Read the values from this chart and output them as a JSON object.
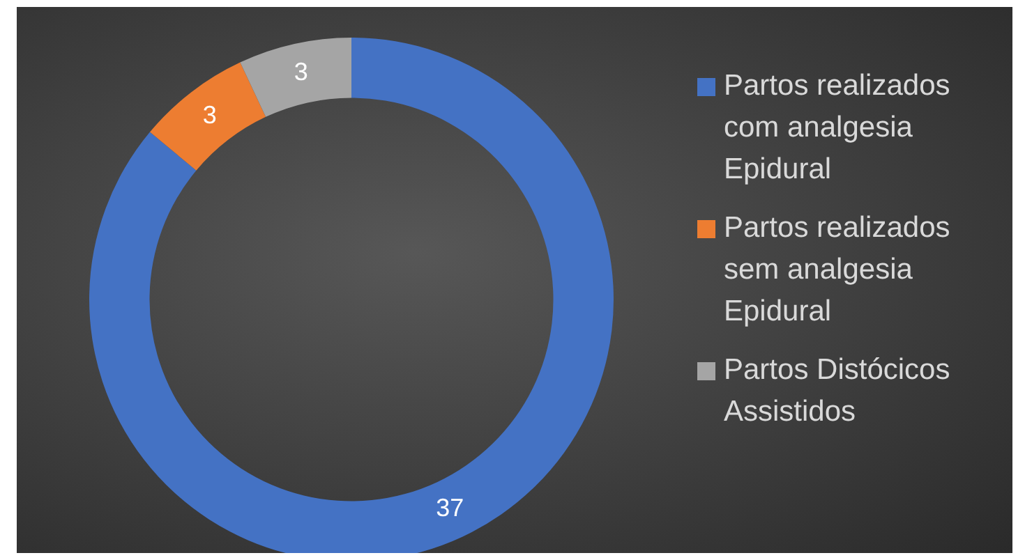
{
  "chart_data": {
    "type": "donut",
    "categories": [
      "Partos realizados com analgesia Epidural",
      "Partos realizados sem analgesia Epidural",
      "Partos Distócicos Assistidos"
    ],
    "values": [
      37,
      3,
      3
    ],
    "colors": [
      "#4472c4",
      "#ed7d31",
      "#a5a5a5"
    ],
    "data_labels": true,
    "legend": "right"
  }
}
